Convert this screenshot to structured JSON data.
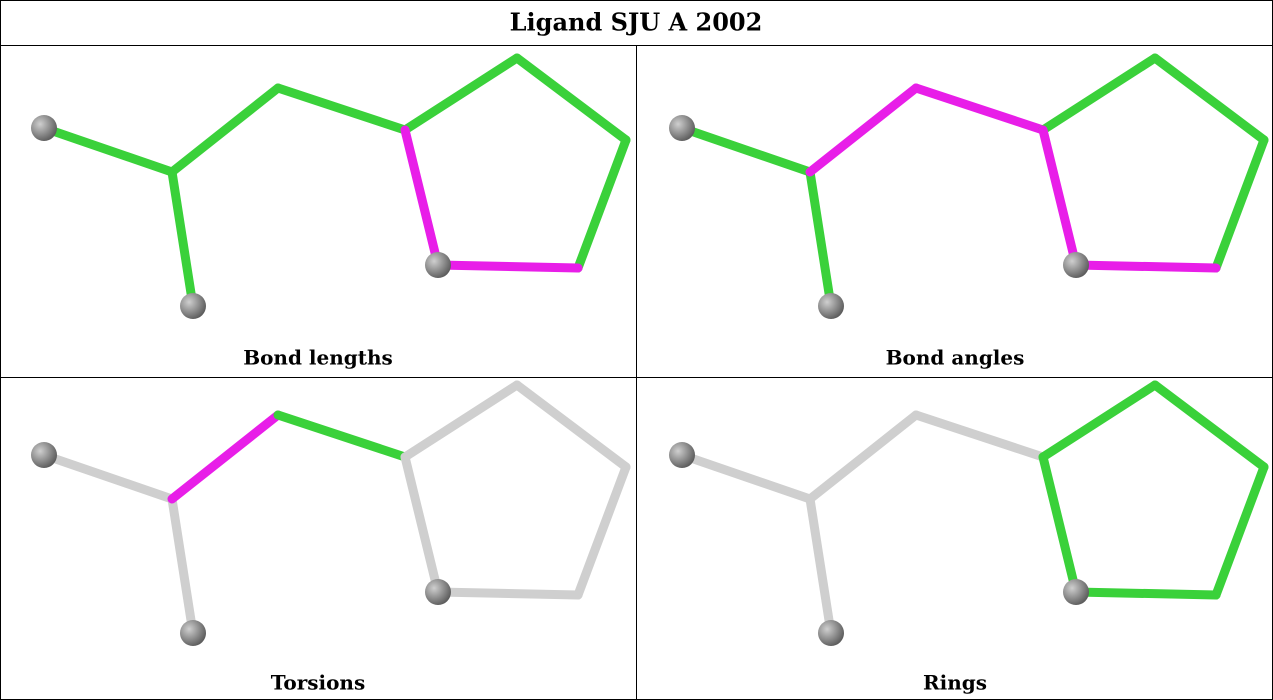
{
  "title": "Ligand SJU A 2002",
  "panels": [
    {
      "caption": "Bond lengths"
    },
    {
      "caption": "Bond angles"
    },
    {
      "caption": "Torsions"
    },
    {
      "caption": "Rings"
    }
  ]
}
